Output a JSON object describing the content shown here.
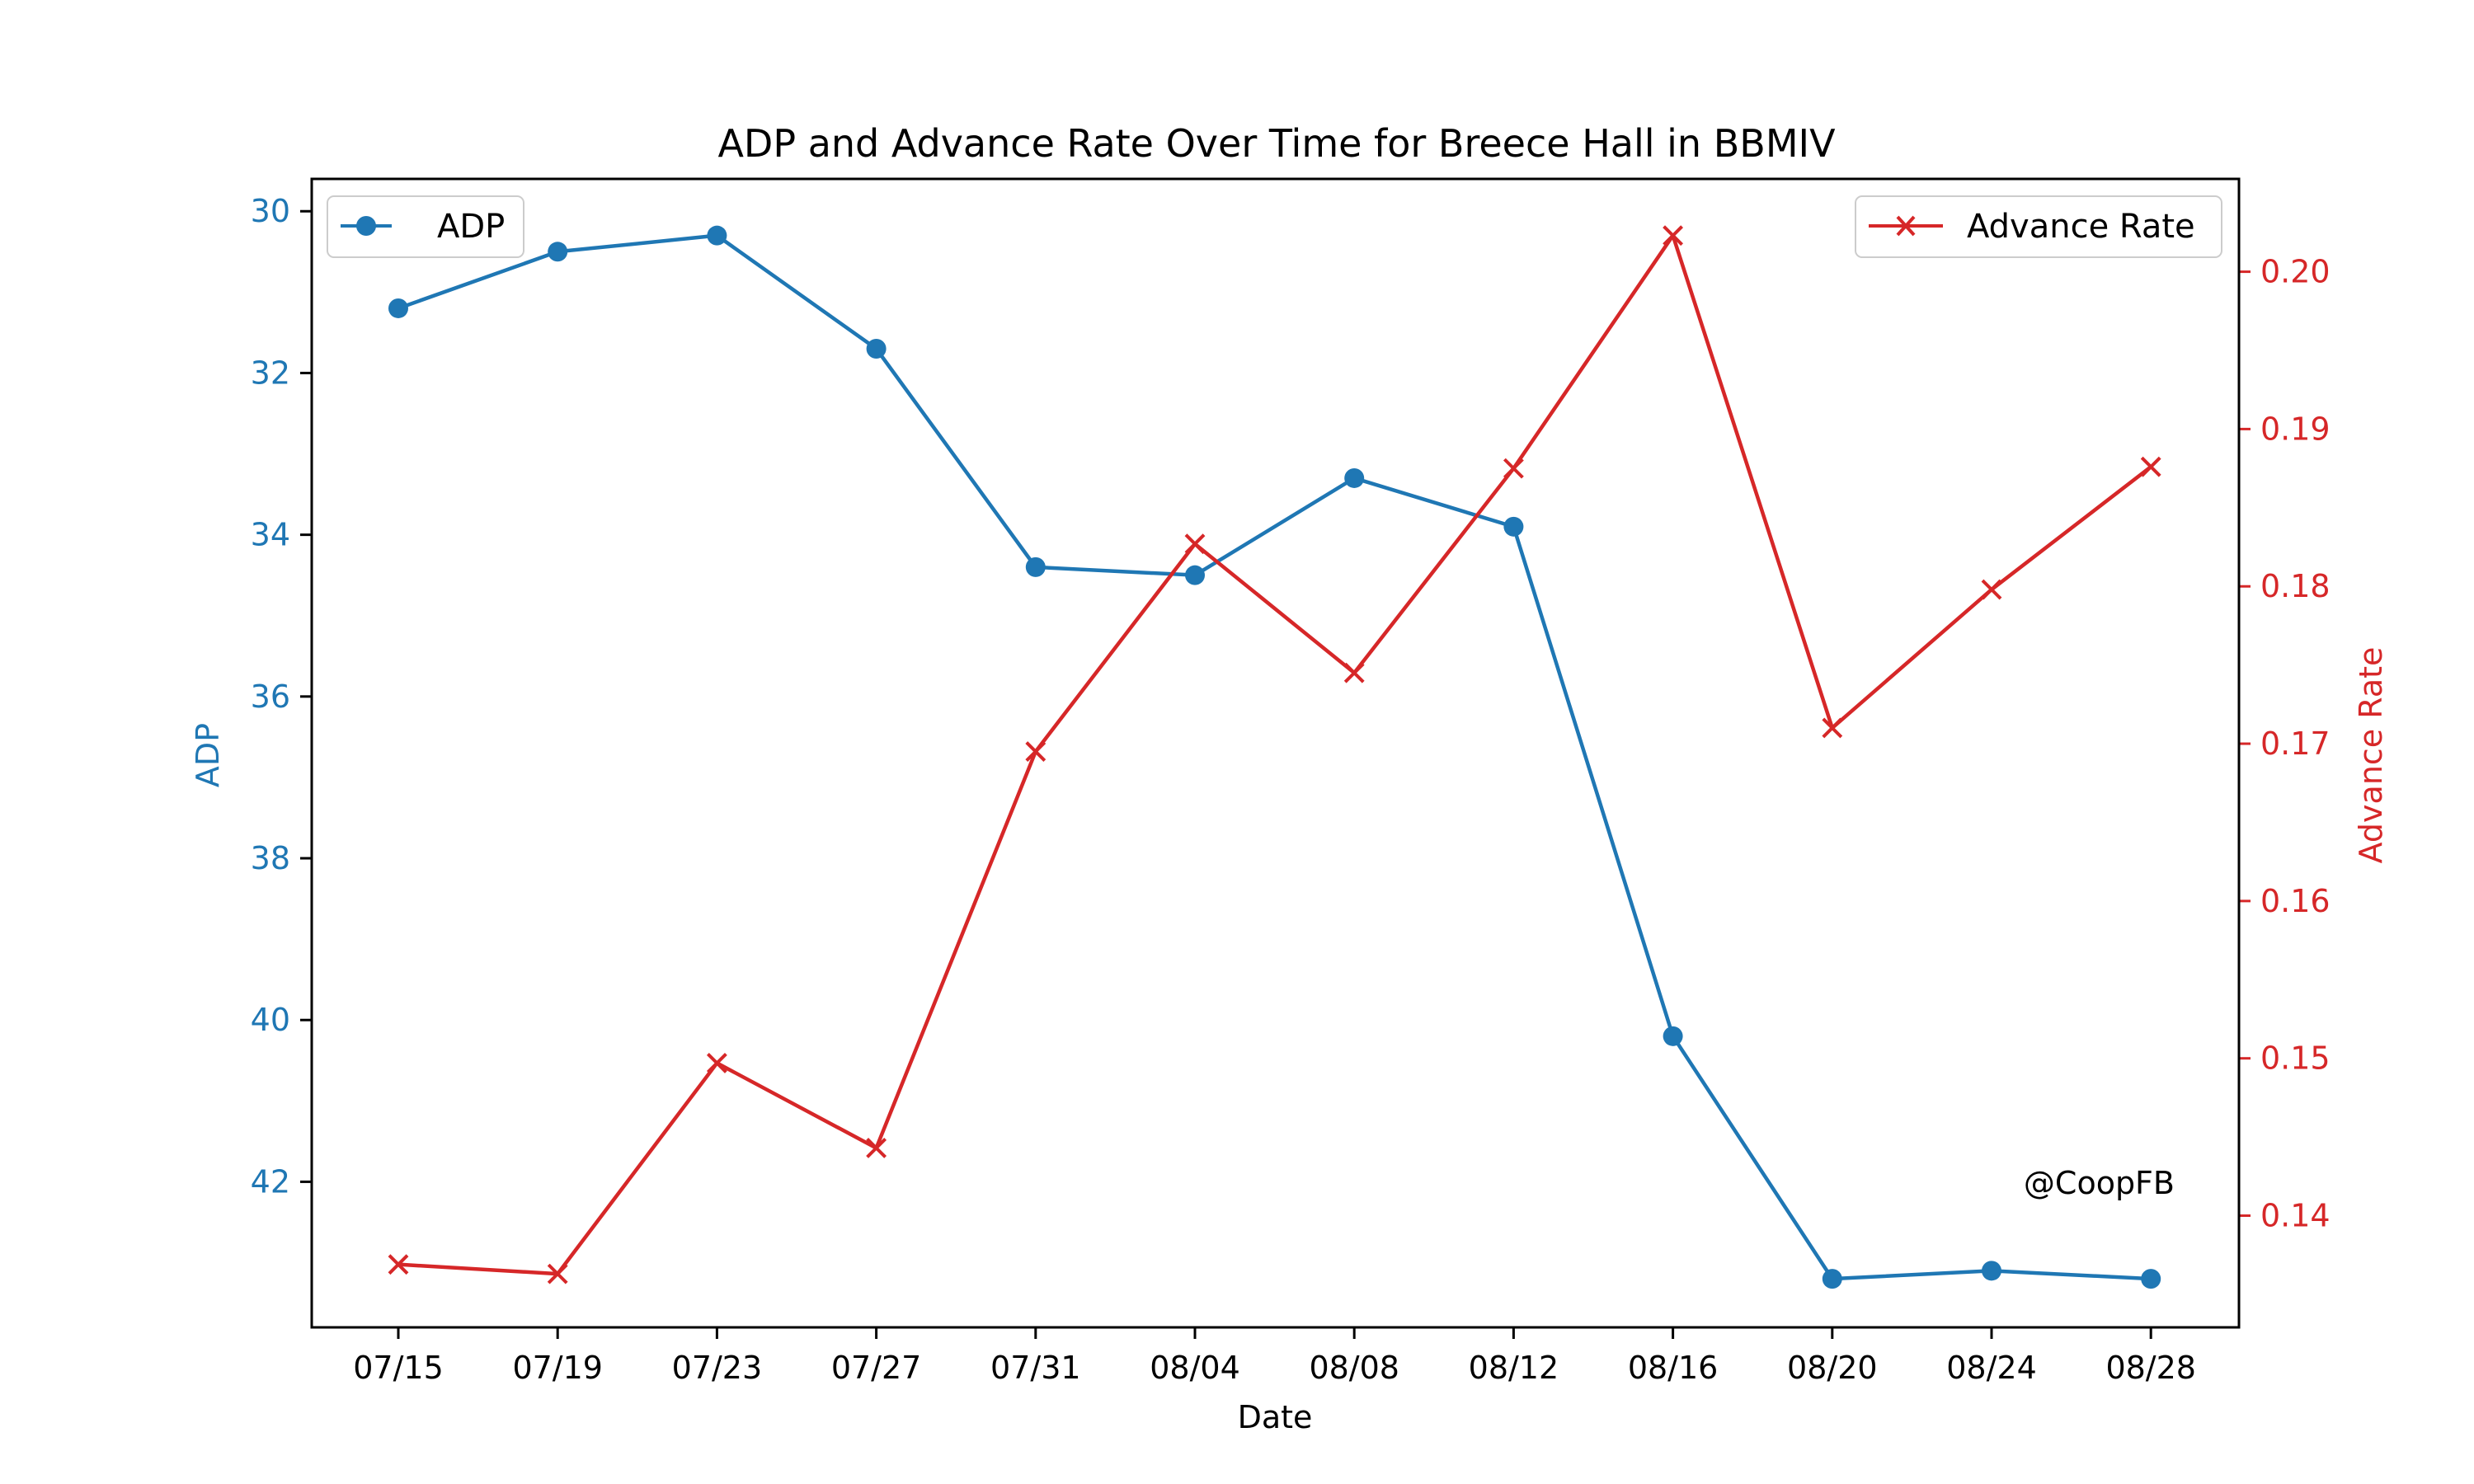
{
  "chart_data": {
    "type": "line",
    "title": "ADP and Advance Rate Over Time for Breece Hall in BBMIV",
    "xlabel": "Date",
    "ylabel": "ADP",
    "y2label": "Advance Rate",
    "categories": [
      "07/15",
      "07/19",
      "07/23",
      "07/27",
      "07/31",
      "08/04",
      "08/08",
      "08/12",
      "08/16",
      "08/20",
      "08/24",
      "08/28"
    ],
    "series": [
      {
        "name": "ADP",
        "axis": "left",
        "color": "#1f77b4",
        "marker": "circle",
        "values": [
          31.2,
          30.5,
          30.3,
          31.7,
          34.4,
          34.5,
          33.3,
          33.9,
          40.2,
          43.2,
          43.1,
          43.2
        ]
      },
      {
        "name": "Advance Rate",
        "axis": "right",
        "color": "#d62728",
        "marker": "x",
        "values": [
          0.1369,
          0.1363,
          0.1497,
          0.1443,
          0.1695,
          0.1827,
          0.1745,
          0.1875,
          0.2023,
          0.171,
          0.1798,
          0.1876
        ]
      }
    ],
    "y_axis": {
      "ylim": [
        43.8,
        29.6
      ],
      "inverted": true,
      "ticks": [
        "30",
        "32",
        "34",
        "36",
        "38",
        "40",
        "42"
      ],
      "tick_values": [
        30,
        32,
        34,
        36,
        38,
        40,
        42
      ],
      "color": "#1f77b4"
    },
    "y2_axis": {
      "ylim": [
        0.1329,
        0.2059
      ],
      "ticks": [
        "0.14",
        "0.15",
        "0.16",
        "0.17",
        "0.18",
        "0.19",
        "0.20"
      ],
      "tick_values": [
        0.14,
        0.15,
        0.16,
        0.17,
        0.18,
        0.19,
        0.2
      ],
      "color": "#d62728"
    },
    "legend": {
      "left_entry": "ADP",
      "left_position": "upper-left",
      "right_entry": "Advance Rate",
      "right_position": "upper-right"
    },
    "annotation": "@CoopFB",
    "grid": false
  }
}
